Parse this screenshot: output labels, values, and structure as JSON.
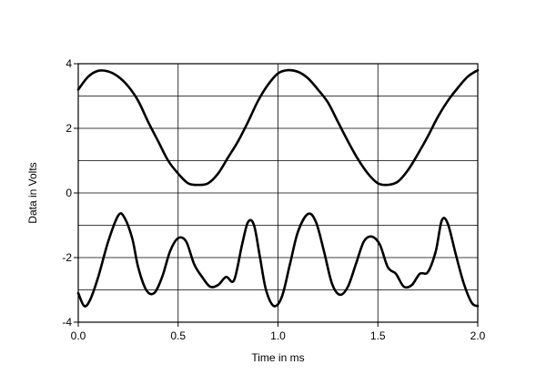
{
  "chart_data": {
    "type": "line",
    "title": "",
    "xlabel": "Time in ms",
    "ylabel": "Data in Volts",
    "xlim": [
      0.0,
      2.0
    ],
    "ylim": [
      -4,
      4
    ],
    "x_ticks": [
      "0.0",
      "0.5",
      "1.0",
      "1.5",
      "2.0"
    ],
    "y_ticks": [
      "4",
      "2",
      "0",
      "-2",
      "-4"
    ],
    "grid": true,
    "legend": "none",
    "line_color": "#000000",
    "series": [
      {
        "x": [
          0.0,
          0.05,
          0.1,
          0.15,
          0.2,
          0.25,
          0.3,
          0.35,
          0.4,
          0.45,
          0.5,
          0.55,
          0.6,
          0.65,
          0.7,
          0.75,
          0.8,
          0.85,
          0.9,
          0.95,
          1.0,
          1.05,
          1.1,
          1.15,
          1.2,
          1.25,
          1.3,
          1.35,
          1.4,
          1.45,
          1.5,
          1.55,
          1.6,
          1.65,
          1.7,
          1.75,
          1.8,
          1.85,
          1.9,
          1.95,
          2.0
        ],
        "values": [
          3.2,
          3.6,
          3.78,
          3.76,
          3.6,
          3.3,
          2.85,
          2.2,
          1.6,
          1.0,
          0.6,
          0.3,
          0.25,
          0.3,
          0.6,
          1.1,
          1.6,
          2.2,
          2.85,
          3.35,
          3.7,
          3.8,
          3.75,
          3.55,
          3.2,
          2.8,
          2.2,
          1.6,
          1.05,
          0.6,
          0.3,
          0.25,
          0.35,
          0.7,
          1.2,
          1.75,
          2.35,
          2.85,
          3.25,
          3.6,
          3.8
        ]
      },
      {
        "x": [
          0.0,
          0.03,
          0.06,
          0.1,
          0.15,
          0.2,
          0.23,
          0.27,
          0.3,
          0.34,
          0.38,
          0.42,
          0.46,
          0.5,
          0.54,
          0.58,
          0.62,
          0.66,
          0.7,
          0.74,
          0.78,
          0.82,
          0.85,
          0.88,
          0.91,
          0.94,
          0.98,
          1.02,
          1.06,
          1.1,
          1.15,
          1.19,
          1.23,
          1.27,
          1.31,
          1.35,
          1.39,
          1.43,
          1.47,
          1.51,
          1.55,
          1.59,
          1.63,
          1.67,
          1.71,
          1.75,
          1.79,
          1.82,
          1.85,
          1.89,
          1.93,
          1.97,
          2.0
        ],
        "values": [
          -3.1,
          -3.5,
          -3.3,
          -2.6,
          -1.5,
          -0.7,
          -0.75,
          -1.4,
          -2.3,
          -3.0,
          -3.1,
          -2.6,
          -1.8,
          -1.4,
          -1.5,
          -2.2,
          -2.6,
          -2.9,
          -2.85,
          -2.6,
          -2.7,
          -1.6,
          -0.9,
          -1.0,
          -2.0,
          -3.0,
          -3.5,
          -3.2,
          -2.2,
          -1.2,
          -0.65,
          -0.9,
          -1.8,
          -2.8,
          -3.15,
          -2.9,
          -2.2,
          -1.5,
          -1.35,
          -1.6,
          -2.3,
          -2.5,
          -2.9,
          -2.85,
          -2.5,
          -2.45,
          -1.8,
          -0.85,
          -0.95,
          -1.9,
          -2.8,
          -3.4,
          -3.5
        ]
      }
    ]
  }
}
